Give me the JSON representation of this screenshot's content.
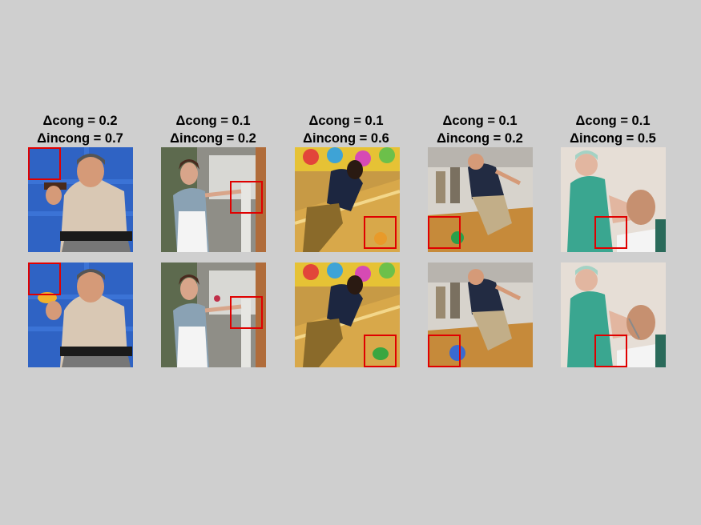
{
  "columns": [
    {
      "cong": "Δcong = 0.2",
      "incong": "Δincong = 0.7",
      "scene": "police-officer-aiming"
    },
    {
      "cong": "Δcong = 0.1",
      "incong": "Δincong = 0.2",
      "scene": "woman-painting"
    },
    {
      "cong": "Δcong = 0.1",
      "incong": "Δincong = 0.6",
      "scene": "woman-bowling"
    },
    {
      "cong": "Δcong = 0.1",
      "incong": "Δincong = 0.2",
      "scene": "man-bowling"
    },
    {
      "cong": "Δcong = 0.1",
      "incong": "Δincong = 0.5",
      "scene": "doctor-with-patient"
    }
  ],
  "colors": {
    "background": "#cfcfcf",
    "highlight_box": "#e00000"
  }
}
